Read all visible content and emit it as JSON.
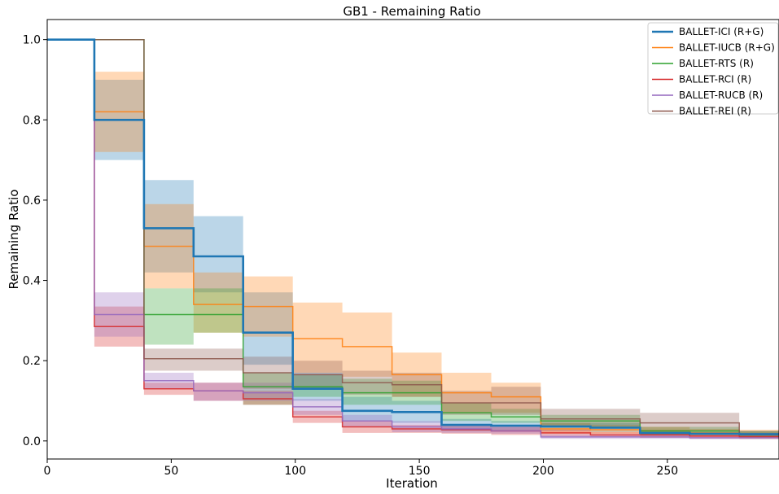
{
  "chart_data": {
    "type": "line",
    "title": "GB1 - Remaining Ratio",
    "xlabel": "Iteration",
    "ylabel": "Remaining Ratio",
    "xlim": [
      0,
      295
    ],
    "ylim": [
      -0.045,
      1.05
    ],
    "xticks": [
      0,
      50,
      100,
      150,
      200,
      250
    ],
    "yticks": [
      0.0,
      0.2,
      0.4,
      0.6,
      0.8,
      1.0
    ],
    "ytick_labels": [
      "0.0",
      "0.2",
      "0.4",
      "0.6",
      "0.8",
      "1.0"
    ],
    "legend_position": "top-right",
    "step": true,
    "series": [
      {
        "name": "BALLET-ICI (R+G)",
        "color": "#1f77b4",
        "x": [
          0,
          19,
          39,
          59,
          79,
          99,
          119,
          139,
          159,
          179,
          199,
          219,
          239,
          259,
          279,
          295
        ],
        "y": [
          1.0,
          0.8,
          0.53,
          0.46,
          0.27,
          0.13,
          0.075,
          0.072,
          0.04,
          0.038,
          0.036,
          0.033,
          0.02,
          0.018,
          0.017,
          0.017
        ],
        "lower": [
          1.0,
          0.7,
          0.42,
          0.37,
          0.19,
          0.1,
          0.05,
          0.045,
          0.025,
          0.025,
          0.025,
          0.022,
          0.012,
          0.012,
          0.01,
          0.01
        ],
        "upper": [
          1.0,
          0.9,
          0.65,
          0.56,
          0.37,
          0.17,
          0.11,
          0.1,
          0.055,
          0.05,
          0.045,
          0.045,
          0.028,
          0.025,
          0.025,
          0.025
        ]
      },
      {
        "name": "BALLET-IUCB (R+G)",
        "color": "#ff7f0e",
        "x": [
          0,
          19,
          39,
          59,
          79,
          99,
          119,
          139,
          159,
          179,
          199,
          219,
          239,
          259,
          279,
          295
        ],
        "y": [
          1.0,
          0.82,
          0.485,
          0.34,
          0.335,
          0.255,
          0.235,
          0.165,
          0.12,
          0.11,
          0.03,
          0.028,
          0.025,
          0.02,
          0.018,
          0.018
        ],
        "lower": [
          1.0,
          0.72,
          0.38,
          0.27,
          0.26,
          0.17,
          0.16,
          0.11,
          0.07,
          0.07,
          0.018,
          0.018,
          0.015,
          0.012,
          0.01,
          0.01
        ],
        "upper": [
          1.0,
          0.92,
          0.59,
          0.42,
          0.41,
          0.345,
          0.32,
          0.22,
          0.17,
          0.145,
          0.045,
          0.04,
          0.035,
          0.03,
          0.028,
          0.028
        ]
      },
      {
        "name": "BALLET-RTS (R)",
        "color": "#2ca02c",
        "x": [
          0,
          19,
          39,
          59,
          79,
          99,
          119,
          139,
          159,
          179,
          199,
          219,
          239,
          259,
          279,
          295
        ],
        "y": [
          1.0,
          1.0,
          0.315,
          0.315,
          0.135,
          0.135,
          0.12,
          0.12,
          0.07,
          0.06,
          0.05,
          0.05,
          0.025,
          0.025,
          0.015,
          0.015
        ],
        "lower": [
          1.0,
          1.0,
          0.24,
          0.27,
          0.09,
          0.11,
          0.09,
          0.09,
          0.05,
          0.045,
          0.035,
          0.035,
          0.015,
          0.015,
          0.01,
          0.01
        ],
        "upper": [
          1.0,
          1.0,
          0.38,
          0.38,
          0.17,
          0.165,
          0.155,
          0.15,
          0.095,
          0.08,
          0.065,
          0.065,
          0.035,
          0.035,
          0.025,
          0.025
        ]
      },
      {
        "name": "BALLET-RCI (R)",
        "color": "#d62728",
        "x": [
          0,
          19,
          39,
          59,
          79,
          99,
          119,
          139,
          159,
          179,
          199,
          219,
          239,
          259,
          279,
          295
        ],
        "y": [
          1.0,
          0.285,
          0.13,
          0.125,
          0.105,
          0.06,
          0.035,
          0.03,
          0.028,
          0.025,
          0.02,
          0.015,
          0.015,
          0.012,
          0.01,
          0.01
        ],
        "lower": [
          1.0,
          0.235,
          0.115,
          0.1,
          0.09,
          0.045,
          0.02,
          0.02,
          0.018,
          0.015,
          0.012,
          0.01,
          0.008,
          0.006,
          0.005,
          0.005
        ],
        "upper": [
          1.0,
          0.335,
          0.145,
          0.145,
          0.125,
          0.075,
          0.05,
          0.04,
          0.038,
          0.035,
          0.028,
          0.022,
          0.02,
          0.018,
          0.015,
          0.015
        ]
      },
      {
        "name": "BALLET-RUCB (R)",
        "color": "#9467bd",
        "x": [
          0,
          19,
          39,
          59,
          79,
          99,
          119,
          139,
          159,
          179,
          199,
          219,
          239,
          259,
          279,
          295
        ],
        "y": [
          1.0,
          0.315,
          0.15,
          0.125,
          0.12,
          0.085,
          0.05,
          0.035,
          0.03,
          0.025,
          0.01,
          0.01,
          0.01,
          0.008,
          0.008,
          0.008
        ],
        "lower": [
          1.0,
          0.26,
          0.13,
          0.1,
          0.1,
          0.065,
          0.035,
          0.022,
          0.02,
          0.018,
          0.005,
          0.005,
          0.005,
          0.004,
          0.004,
          0.004
        ],
        "upper": [
          1.0,
          0.37,
          0.17,
          0.145,
          0.145,
          0.105,
          0.065,
          0.05,
          0.04,
          0.035,
          0.016,
          0.016,
          0.015,
          0.012,
          0.012,
          0.012
        ]
      },
      {
        "name": "BALLET-REI (R)",
        "color": "#8c564b",
        "x": [
          0,
          19,
          39,
          59,
          79,
          99,
          119,
          139,
          159,
          179,
          199,
          219,
          239,
          259,
          279,
          295
        ],
        "y": [
          1.0,
          1.0,
          0.205,
          0.205,
          0.17,
          0.165,
          0.145,
          0.14,
          0.095,
          0.095,
          0.055,
          0.055,
          0.045,
          0.045,
          0.015,
          0.015
        ],
        "lower": [
          1.0,
          1.0,
          0.175,
          0.175,
          0.13,
          0.13,
          0.115,
          0.11,
          0.065,
          0.065,
          0.035,
          0.035,
          0.025,
          0.025,
          0.008,
          0.008
        ],
        "upper": [
          1.0,
          1.0,
          0.23,
          0.23,
          0.21,
          0.2,
          0.175,
          0.17,
          0.125,
          0.135,
          0.08,
          0.08,
          0.07,
          0.07,
          0.025,
          0.025
        ]
      }
    ]
  }
}
